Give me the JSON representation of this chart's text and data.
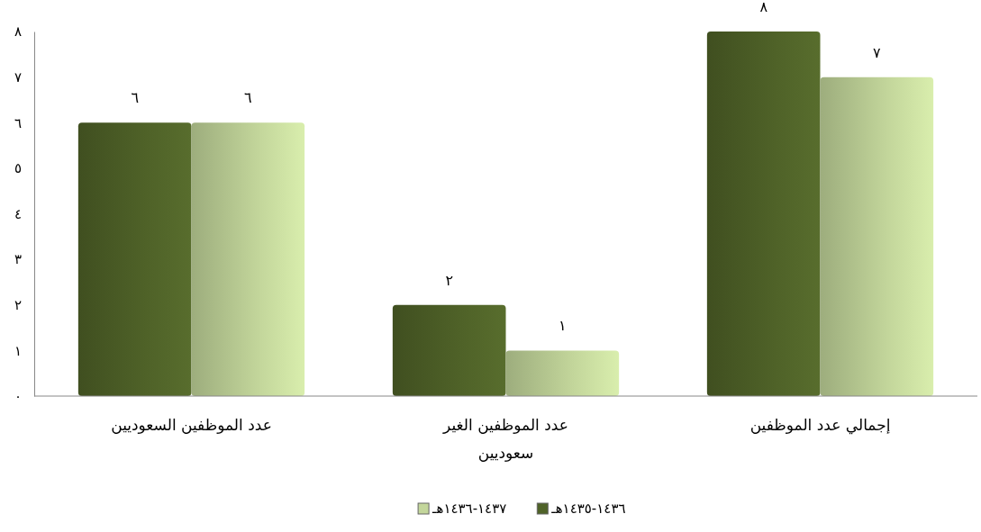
{
  "chart_data": {
    "type": "bar",
    "categories": [
      "عدد الموظفين السعوديين",
      "عدد الموظفين الغير سعوديين",
      "إجمالي عدد الموظفين"
    ],
    "series": [
      {
        "name": "١٤٣٦-١٤٣٥هـ",
        "color": "#4f6228",
        "values": [
          6,
          2,
          8
        ],
        "value_labels": [
          "٦",
          "٢",
          "٨"
        ]
      },
      {
        "name": "١٤٣٧-١٤٣٦هـ",
        "color": "#c3d69b",
        "values": [
          6,
          1,
          7
        ],
        "value_labels": [
          "٦",
          "١",
          "٧"
        ]
      }
    ],
    "ylim": [
      0,
      8
    ],
    "yticks": [
      {
        "value": 0,
        "label": "٠"
      },
      {
        "value": 1,
        "label": "١"
      },
      {
        "value": 2,
        "label": "٢"
      },
      {
        "value": 3,
        "label": "٣"
      },
      {
        "value": 4,
        "label": "٤"
      },
      {
        "value": 5,
        "label": "٥"
      },
      {
        "value": 6,
        "label": "٦"
      },
      {
        "value": 7,
        "label": "٧"
      },
      {
        "value": 8,
        "label": "٨"
      }
    ],
    "grid": false,
    "legend": "bottom"
  }
}
